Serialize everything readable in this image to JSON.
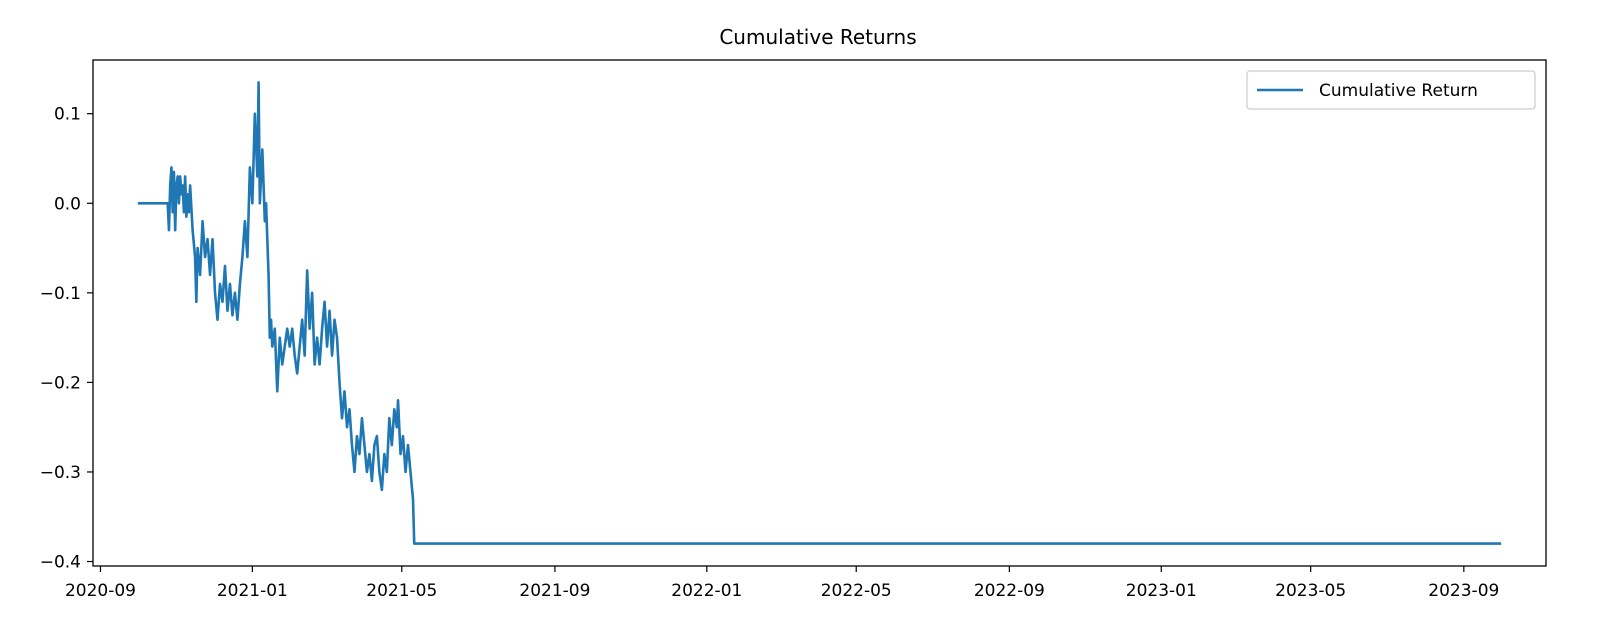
{
  "chart_data": {
    "type": "line",
    "title": "Cumulative Returns",
    "xlabel": "",
    "ylabel": "",
    "x_type": "date",
    "xlim": [
      "2020-08-26",
      "2023-11-06"
    ],
    "ylim": [
      -0.405,
      0.16
    ],
    "grid": false,
    "legend_position": "top-right",
    "x_ticks": [
      "2020-09-01",
      "2021-01-01",
      "2021-05-01",
      "2021-09-01",
      "2022-01-01",
      "2022-05-01",
      "2022-09-01",
      "2023-01-01",
      "2023-05-01",
      "2023-09-01"
    ],
    "x_tick_labels": [
      "2020-09",
      "2021-01",
      "2021-05",
      "2021-09",
      "2022-01",
      "2022-05",
      "2022-09",
      "2023-01",
      "2023-05",
      "2023-09"
    ],
    "y_ticks": [
      0.1,
      0.0,
      -0.1,
      -0.2,
      -0.3,
      -0.4
    ],
    "y_tick_labels": [
      "0.1",
      "0.0",
      "−0.1",
      "−0.2",
      "−0.3",
      "−0.4"
    ],
    "series": [
      {
        "name": "Cumulative Return",
        "color": "#1f77b4",
        "points": [
          [
            "2020-10-01",
            0.0
          ],
          [
            "2020-10-25",
            0.0
          ],
          [
            "2020-10-26",
            -0.03
          ],
          [
            "2020-10-27",
            0.02
          ],
          [
            "2020-10-28",
            0.04
          ],
          [
            "2020-10-29",
            -0.01
          ],
          [
            "2020-10-30",
            0.035
          ],
          [
            "2020-10-31",
            -0.03
          ],
          [
            "2020-11-01",
            0.02
          ],
          [
            "2020-11-02",
            0.03
          ],
          [
            "2020-11-03",
            0.0
          ],
          [
            "2020-11-04",
            0.03
          ],
          [
            "2020-11-05",
            0.01
          ],
          [
            "2020-11-06",
            0.02
          ],
          [
            "2020-11-07",
            -0.01
          ],
          [
            "2020-11-08",
            0.03
          ],
          [
            "2020-11-09",
            -0.015
          ],
          [
            "2020-11-10",
            0.01
          ],
          [
            "2020-11-11",
            -0.01
          ],
          [
            "2020-11-12",
            0.02
          ],
          [
            "2020-11-14",
            -0.03
          ],
          [
            "2020-11-16",
            -0.06
          ],
          [
            "2020-11-17",
            -0.11
          ],
          [
            "2020-11-18",
            -0.05
          ],
          [
            "2020-11-20",
            -0.08
          ],
          [
            "2020-11-22",
            -0.02
          ],
          [
            "2020-11-24",
            -0.06
          ],
          [
            "2020-11-26",
            -0.04
          ],
          [
            "2020-11-28",
            -0.08
          ],
          [
            "2020-11-30",
            -0.04
          ],
          [
            "2020-12-02",
            -0.1
          ],
          [
            "2020-12-04",
            -0.13
          ],
          [
            "2020-12-06",
            -0.09
          ],
          [
            "2020-12-08",
            -0.11
          ],
          [
            "2020-12-10",
            -0.07
          ],
          [
            "2020-12-12",
            -0.12
          ],
          [
            "2020-12-14",
            -0.09
          ],
          [
            "2020-12-16",
            -0.125
          ],
          [
            "2020-12-18",
            -0.1
          ],
          [
            "2020-12-20",
            -0.13
          ],
          [
            "2020-12-22",
            -0.09
          ],
          [
            "2020-12-24",
            -0.06
          ],
          [
            "2020-12-26",
            -0.02
          ],
          [
            "2020-12-28",
            -0.06
          ],
          [
            "2020-12-30",
            0.04
          ],
          [
            "2021-01-01",
            0.0
          ],
          [
            "2021-01-03",
            0.1
          ],
          [
            "2021-01-05",
            0.03
          ],
          [
            "2021-01-06",
            0.135
          ],
          [
            "2021-01-07",
            0.0
          ],
          [
            "2021-01-09",
            0.06
          ],
          [
            "2021-01-11",
            -0.02
          ],
          [
            "2021-01-12",
            0.0
          ],
          [
            "2021-01-14",
            -0.08
          ],
          [
            "2021-01-15",
            -0.15
          ],
          [
            "2021-01-16",
            -0.13
          ],
          [
            "2021-01-17",
            -0.16
          ],
          [
            "2021-01-19",
            -0.14
          ],
          [
            "2021-01-21",
            -0.21
          ],
          [
            "2021-01-23",
            -0.15
          ],
          [
            "2021-01-25",
            -0.18
          ],
          [
            "2021-01-27",
            -0.16
          ],
          [
            "2021-01-29",
            -0.14
          ],
          [
            "2021-01-31",
            -0.16
          ],
          [
            "2021-02-02",
            -0.14
          ],
          [
            "2021-02-04",
            -0.17
          ],
          [
            "2021-02-06",
            -0.19
          ],
          [
            "2021-02-08",
            -0.16
          ],
          [
            "2021-02-10",
            -0.13
          ],
          [
            "2021-02-12",
            -0.17
          ],
          [
            "2021-02-14",
            -0.075
          ],
          [
            "2021-02-16",
            -0.14
          ],
          [
            "2021-02-18",
            -0.1
          ],
          [
            "2021-02-20",
            -0.18
          ],
          [
            "2021-02-22",
            -0.15
          ],
          [
            "2021-02-24",
            -0.18
          ],
          [
            "2021-02-26",
            -0.14
          ],
          [
            "2021-02-28",
            -0.11
          ],
          [
            "2021-03-02",
            -0.16
          ],
          [
            "2021-03-04",
            -0.12
          ],
          [
            "2021-03-06",
            -0.17
          ],
          [
            "2021-03-08",
            -0.13
          ],
          [
            "2021-03-10",
            -0.15
          ],
          [
            "2021-03-12",
            -0.2
          ],
          [
            "2021-03-14",
            -0.24
          ],
          [
            "2021-03-16",
            -0.21
          ],
          [
            "2021-03-18",
            -0.25
          ],
          [
            "2021-03-20",
            -0.23
          ],
          [
            "2021-03-22",
            -0.27
          ],
          [
            "2021-03-24",
            -0.3
          ],
          [
            "2021-03-26",
            -0.26
          ],
          [
            "2021-03-28",
            -0.28
          ],
          [
            "2021-03-30",
            -0.24
          ],
          [
            "2021-04-01",
            -0.27
          ],
          [
            "2021-04-03",
            -0.3
          ],
          [
            "2021-04-05",
            -0.28
          ],
          [
            "2021-04-07",
            -0.31
          ],
          [
            "2021-04-09",
            -0.27
          ],
          [
            "2021-04-11",
            -0.26
          ],
          [
            "2021-04-13",
            -0.3
          ],
          [
            "2021-04-15",
            -0.32
          ],
          [
            "2021-04-17",
            -0.28
          ],
          [
            "2021-04-19",
            -0.3
          ],
          [
            "2021-04-21",
            -0.24
          ],
          [
            "2021-04-23",
            -0.27
          ],
          [
            "2021-04-25",
            -0.23
          ],
          [
            "2021-04-27",
            -0.25
          ],
          [
            "2021-04-28",
            -0.22
          ],
          [
            "2021-04-30",
            -0.28
          ],
          [
            "2021-05-02",
            -0.26
          ],
          [
            "2021-05-04",
            -0.3
          ],
          [
            "2021-05-06",
            -0.27
          ],
          [
            "2021-05-08",
            -0.3
          ],
          [
            "2021-05-10",
            -0.33
          ],
          [
            "2021-05-11",
            -0.38
          ],
          [
            "2023-10-01",
            -0.38
          ]
        ]
      }
    ]
  }
}
